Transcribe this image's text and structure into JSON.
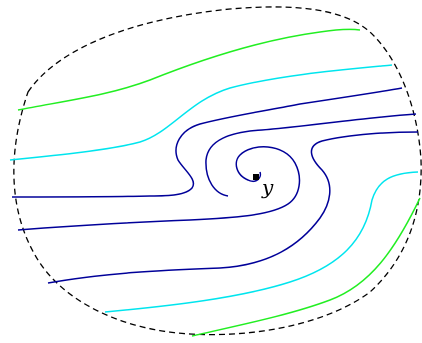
{
  "diagram": {
    "point_label": "y",
    "colors": {
      "boundary": "#000000",
      "outer_curve": "#22ee22",
      "middle_curve": "#00e5ee",
      "inner_curve": "#000099",
      "point": "#000000"
    }
  }
}
